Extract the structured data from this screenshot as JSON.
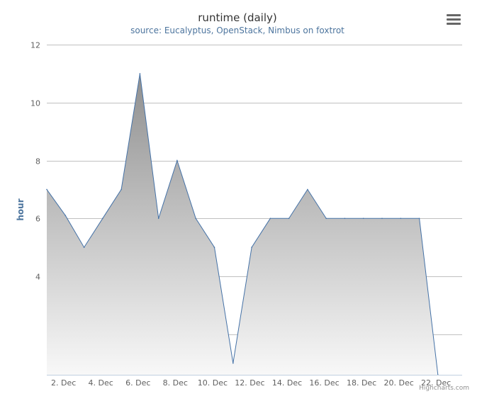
{
  "header": {
    "title": "runtime (daily)",
    "subtitle": "source: Eucalyptus, OpenStack, Nimbus on foxtrot"
  },
  "credits": "Highcharts.com",
  "menu": {
    "icon": "hamburger-menu-icon"
  },
  "chart_data": {
    "type": "area",
    "title": "runtime (daily)",
    "subtitle": "source: Eucalyptus, OpenStack, Nimbus on foxtrot",
    "ylabel": "hour",
    "xlabel": "",
    "ylim": [
      0.6,
      12
    ],
    "y_ticks": [
      {
        "value": 12,
        "label": "12"
      },
      {
        "value": 10,
        "label": "10"
      },
      {
        "value": 8,
        "label": "8"
      },
      {
        "value": 6,
        "label": "6"
      },
      {
        "value": 4,
        "label": "4"
      },
      {
        "value": 2,
        "label": ""
      }
    ],
    "x_ticks": [
      {
        "day": 2,
        "label": "2. Dec"
      },
      {
        "day": 4,
        "label": "4. Dec"
      },
      {
        "day": 6,
        "label": "6. Dec"
      },
      {
        "day": 8,
        "label": "8. Dec"
      },
      {
        "day": 10,
        "label": "10. Dec"
      },
      {
        "day": 12,
        "label": "12. Dec"
      },
      {
        "day": 14,
        "label": "14. Dec"
      },
      {
        "day": 16,
        "label": "16. Dec"
      },
      {
        "day": 18,
        "label": "18. Dec"
      },
      {
        "day": 20,
        "label": "20. Dec"
      },
      {
        "day": 22,
        "label": "22. Dec"
      }
    ],
    "x_range": [
      1.1,
      23.4
    ],
    "series": [
      {
        "days": [
          1.1,
          2.1,
          3.1,
          4.1,
          5.1,
          6.1,
          7.1,
          8.1,
          9.1,
          10.1,
          11.1,
          12.1,
          13.1,
          14.1,
          15.1,
          16.1,
          17.1,
          18.1,
          19.1,
          20.1,
          21.1,
          22.1
        ],
        "values": [
          7,
          6.1,
          5,
          6,
          7,
          11,
          6,
          8,
          6,
          5,
          1,
          5,
          6,
          6,
          7,
          6,
          6,
          6,
          6,
          6,
          6,
          0.6
        ],
        "line_color": "#4572a7",
        "fill_top": "#8f8f8f",
        "fill_bottom": "#f8f8f8"
      }
    ],
    "grid": true,
    "legend": "none"
  }
}
